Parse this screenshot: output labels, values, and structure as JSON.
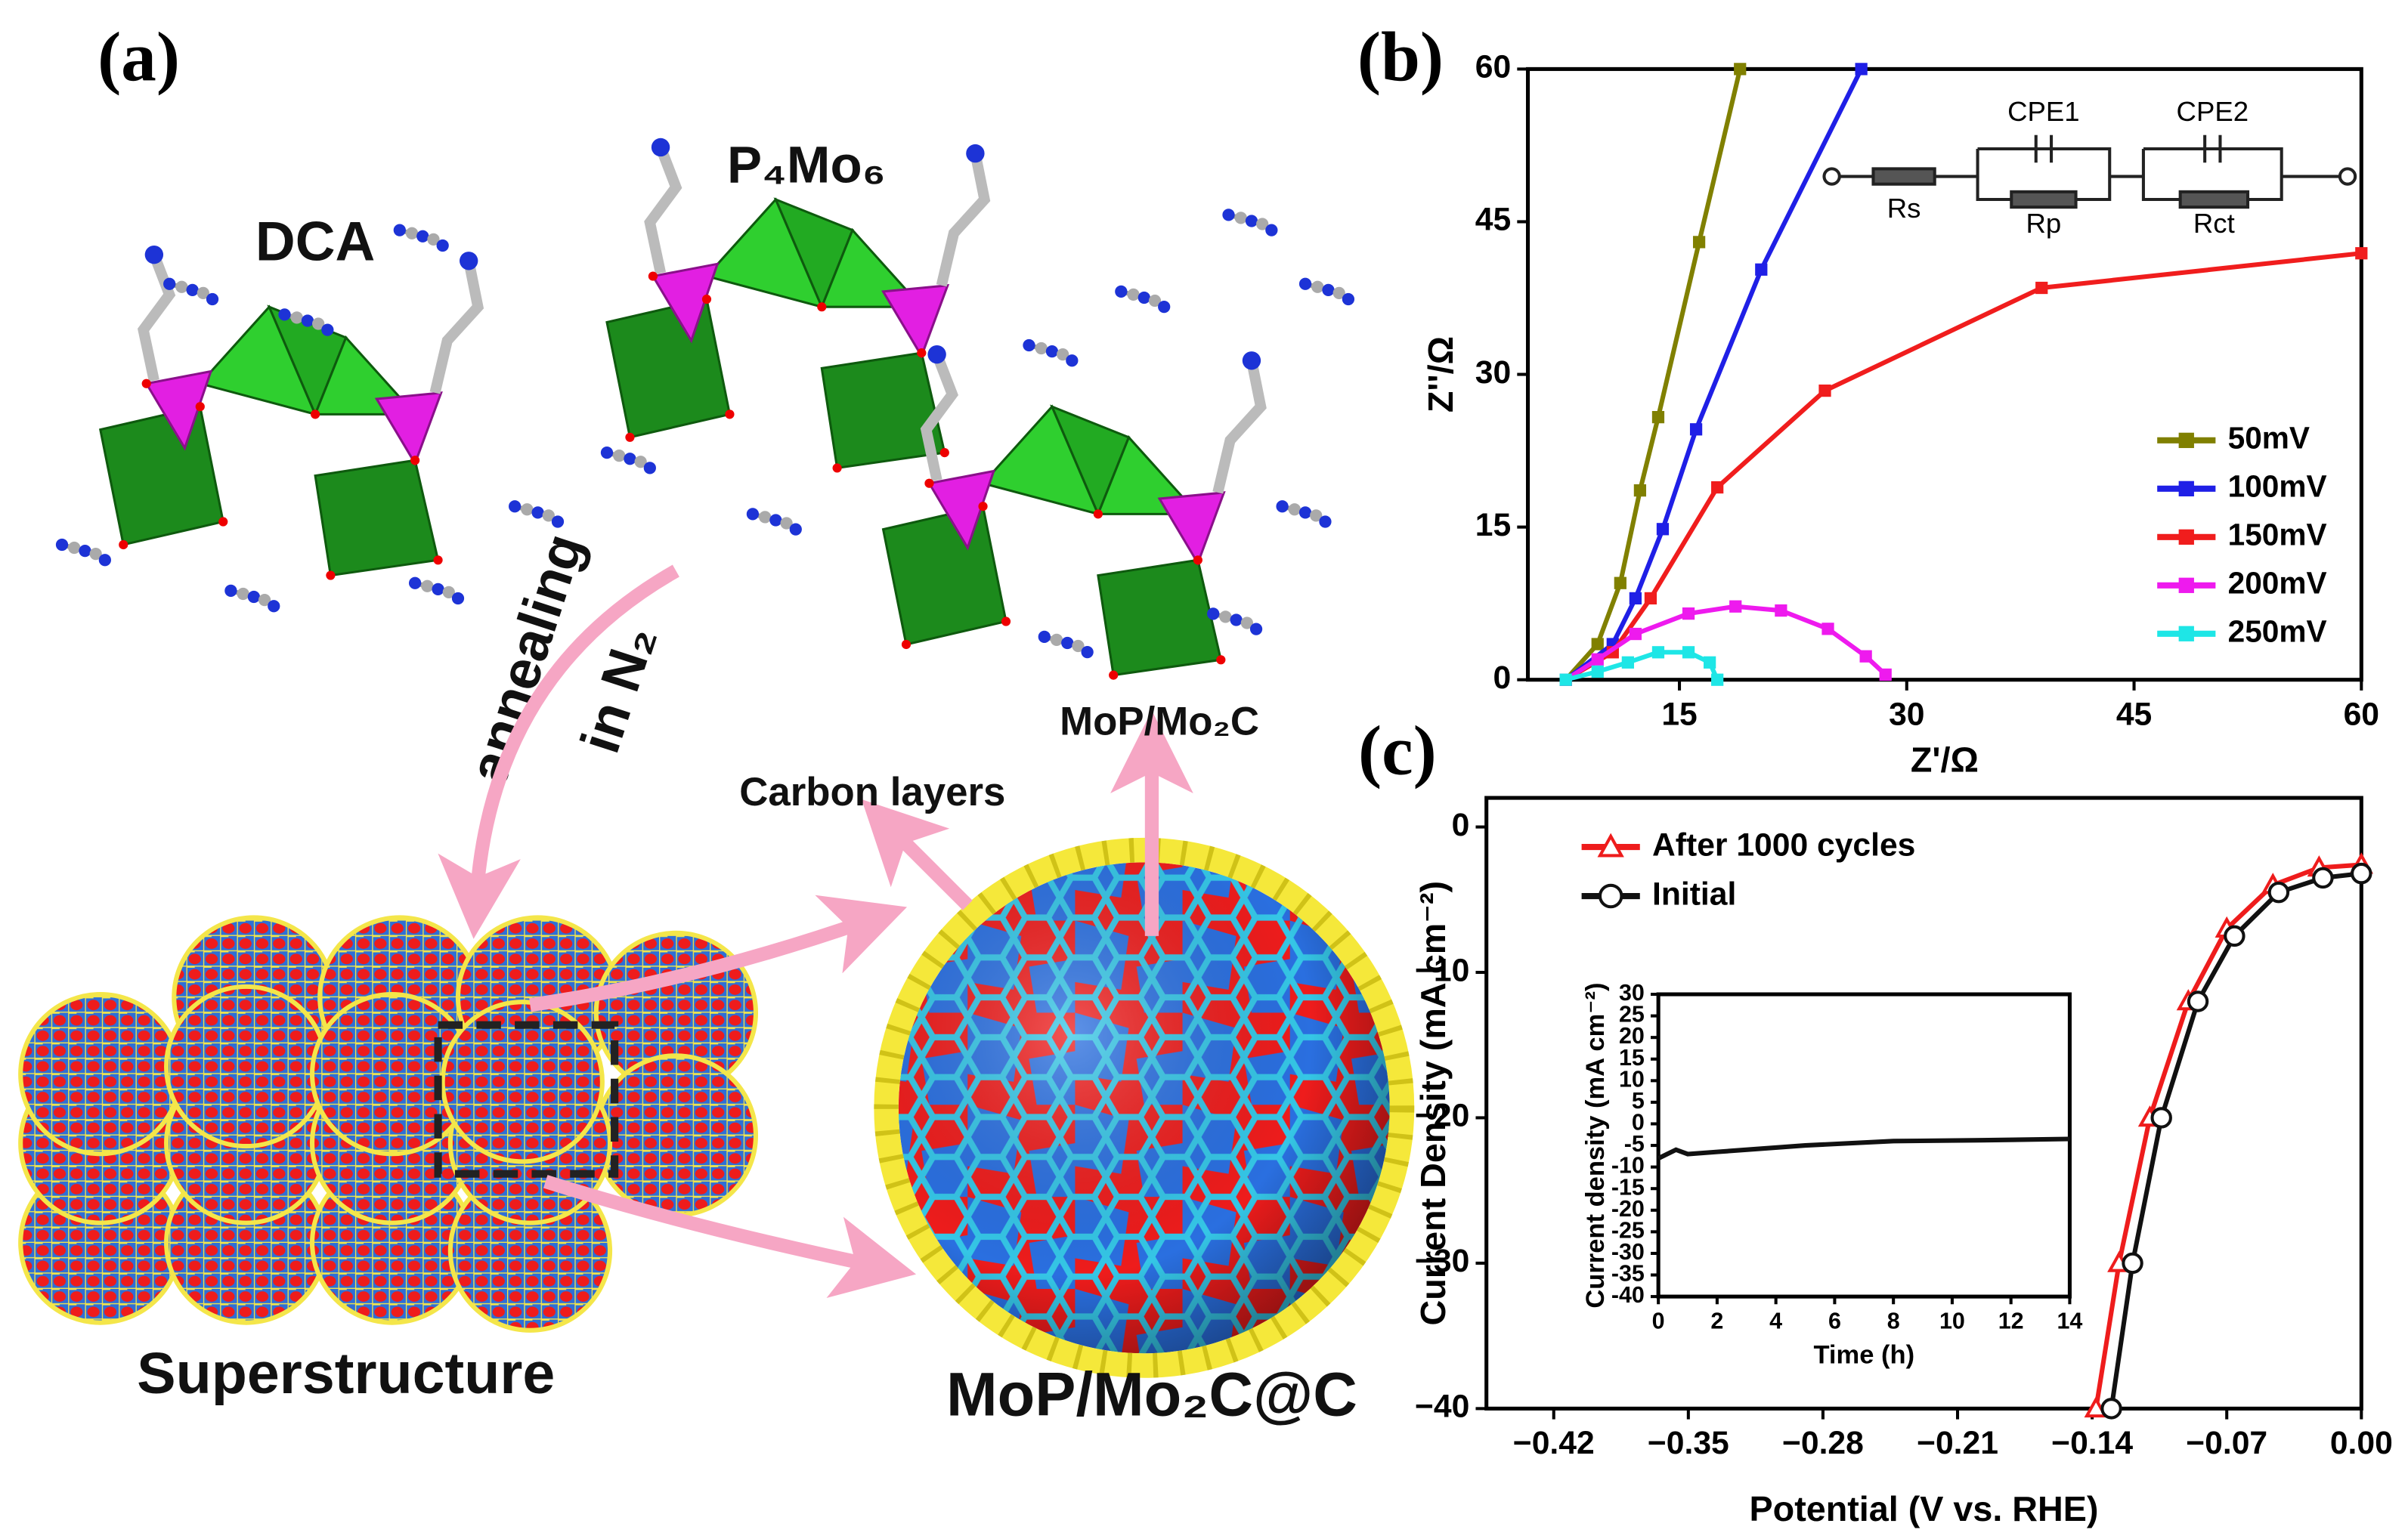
{
  "panel_a": {
    "label": "(a)",
    "dca": "DCA",
    "p4mo6": "P₄Mo₆",
    "annealing": "annealing",
    "in_n2": "in N₂",
    "mop_mo2c": "MoP/Mo₂C",
    "carbon_layers": "Carbon layers",
    "superstructure": "Superstructure",
    "product": "MoP/Mo₂C@C"
  },
  "panel_b": {
    "label": "(b)",
    "circuit": {
      "cpe1": "CPE1",
      "cpe2": "CPE2",
      "rs": "Rs",
      "rp": "Rp",
      "rct": "Rct"
    }
  },
  "panel_c": {
    "label": "(c)"
  },
  "chart_data": [
    {
      "type": "line",
      "xlabel": "Z'/Ω",
      "ylabel": "Z''/Ω",
      "xlim": [
        5,
        60
      ],
      "ylim": [
        0,
        60
      ],
      "xticks": [
        15,
        30,
        45,
        60
      ],
      "yticks": [
        0,
        15,
        30,
        45,
        60
      ],
      "marker": "square",
      "legend": "right",
      "series": [
        {
          "name": "50mV",
          "color": "#808000",
          "x": [
            7.5,
            9.6,
            11.1,
            12.4,
            13.6,
            16.3,
            19.0
          ],
          "values": [
            0,
            3.5,
            9.5,
            18.6,
            25.8,
            43,
            60
          ]
        },
        {
          "name": "100mV",
          "color": "#1f1fe6",
          "x": [
            7.5,
            10.6,
            12.1,
            13.9,
            16.1,
            20.4,
            27.0
          ],
          "values": [
            0,
            3.5,
            8,
            14.8,
            24.6,
            40.3,
            60
          ]
        },
        {
          "name": "150mV",
          "color": "#f01d1d",
          "x": [
            7.5,
            10.6,
            13.1,
            17.5,
            24.6,
            38.9,
            60
          ],
          "values": [
            0,
            2.7,
            8,
            18.9,
            28.4,
            38.5,
            41.9
          ]
        },
        {
          "name": "200mV",
          "color": "#ee1aee",
          "x": [
            7.5,
            9.6,
            12.1,
            15.6,
            18.7,
            21.7,
            24.8,
            27.3,
            28.6
          ],
          "values": [
            0,
            2,
            4.5,
            6.5,
            7.2,
            6.8,
            5,
            2.3,
            0.5
          ]
        },
        {
          "name": "250mV",
          "color": "#1ee6e6",
          "x": [
            7.5,
            9.6,
            11.6,
            13.6,
            15.6,
            17.0,
            17.5
          ],
          "values": [
            0,
            0.8,
            1.7,
            2.7,
            2.7,
            1.7,
            0
          ]
        }
      ]
    },
    {
      "type": "line",
      "xlabel": "Potential (V vs. RHE)",
      "ylabel": "Current Density (mA cm⁻²)",
      "xlim": [
        -0.455,
        0
      ],
      "ylim": [
        -40,
        2
      ],
      "xticks": [
        {
          "value": -0.42,
          "label": "−0.42"
        },
        {
          "value": -0.35,
          "label": "−0.35"
        },
        {
          "value": -0.28,
          "label": "−0.28"
        },
        {
          "value": -0.21,
          "label": "−0.21"
        },
        {
          "value": -0.14,
          "label": "−0.14"
        },
        {
          "value": -0.07,
          "label": "−0.07"
        },
        {
          "value": 0,
          "label": "0.00"
        }
      ],
      "yticks": [
        {
          "value": -40,
          "label": "−40"
        },
        {
          "value": -30,
          "label": "−30"
        },
        {
          "value": -20,
          "label": "−20"
        },
        {
          "value": -10,
          "label": "−10"
        },
        0
      ],
      "legend": "upper left",
      "series": [
        {
          "name": "After 1000 cycles",
          "color": "#ee1c1c",
          "marker": "triangle",
          "x": [
            -0.138,
            -0.126,
            -0.11,
            -0.09,
            -0.07,
            -0.046,
            -0.022,
            0
          ],
          "values": [
            -40,
            -30,
            -20,
            -12,
            -7,
            -4,
            -2.8,
            -2.6
          ]
        },
        {
          "name": "Initial",
          "color": "#111111",
          "marker": "circle",
          "x": [
            -0.13,
            -0.119,
            -0.104,
            -0.085,
            -0.066,
            -0.043,
            -0.02,
            0
          ],
          "values": [
            -40,
            -30,
            -20,
            -12,
            -7.5,
            -4.5,
            -3.5,
            -3.2
          ]
        }
      ]
    },
    {
      "type": "line",
      "xlabel": "Time (h)",
      "ylabel": "Current density (mA cm⁻²)",
      "xlim": [
        0,
        14
      ],
      "ylim": [
        -40,
        30
      ],
      "xticks": [
        0,
        2,
        4,
        6,
        8,
        10,
        12,
        14
      ],
      "yticks": [
        -40,
        -35,
        -30,
        -25,
        -20,
        -15,
        -10,
        -5,
        0,
        5,
        10,
        15,
        20,
        25,
        30
      ],
      "series": [
        {
          "color": "#111111",
          "x": [
            0,
            0.3,
            0.6,
            1,
            2,
            5,
            8,
            11,
            14
          ],
          "values": [
            -8,
            -7,
            -6,
            -7,
            -6.5,
            -5,
            -4,
            -3.8,
            -3.5
          ]
        }
      ]
    }
  ]
}
